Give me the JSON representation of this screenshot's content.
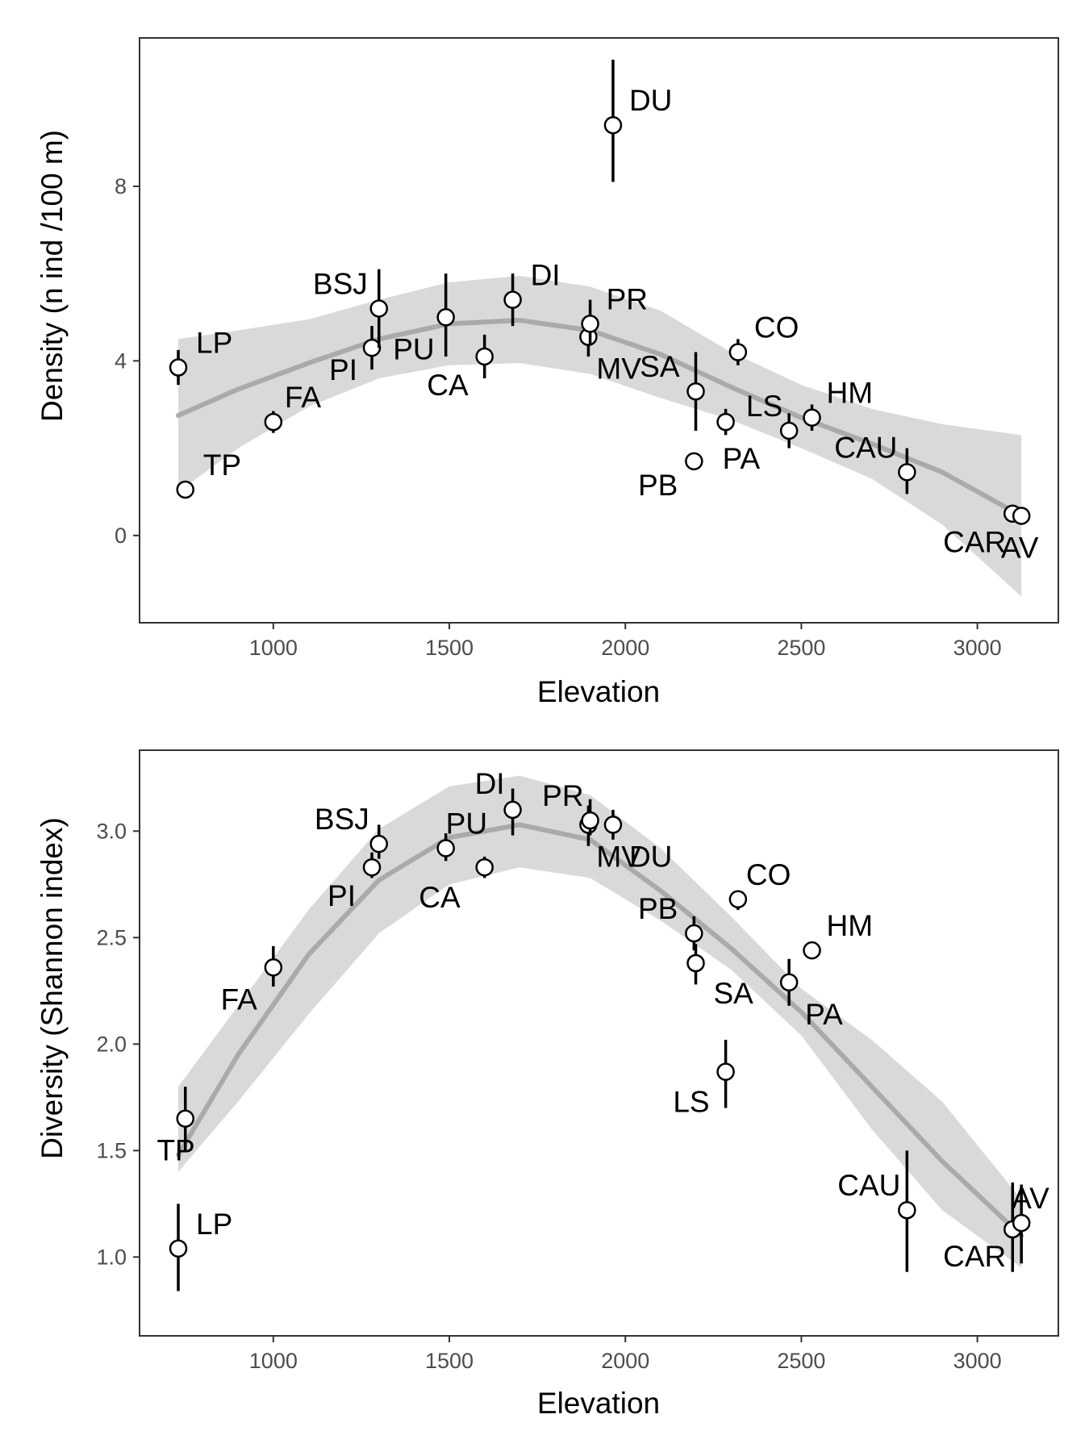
{
  "chart_data": [
    {
      "type": "scatter",
      "title": "",
      "xlabel": "Elevation",
      "ylabel": "Density (n ind /100 m)",
      "xlim": [
        620,
        3230
      ],
      "ylim": [
        -2,
        11.4
      ],
      "xticks": [
        1000,
        1500,
        2000,
        2500,
        3000
      ],
      "yticks": [
        0,
        4,
        8
      ],
      "ytick_labels": [
        "0",
        "4",
        "8"
      ],
      "grid": false,
      "legend": "none",
      "smooth_color": "#aaaaaa",
      "band_color": "#d9d9d9",
      "points": [
        {
          "label": "LP",
          "x": 730,
          "y": 3.85,
          "lo": 3.45,
          "hi": 4.25
        },
        {
          "label": "TP",
          "x": 750,
          "y": 1.05,
          "lo": 0.9,
          "hi": 1.2
        },
        {
          "label": "FA",
          "x": 1000,
          "y": 2.6,
          "lo": 2.35,
          "hi": 2.85
        },
        {
          "label": "PI",
          "x": 1280,
          "y": 4.3,
          "lo": 3.8,
          "hi": 4.8
        },
        {
          "label": "BSJ",
          "x": 1300,
          "y": 5.2,
          "lo": 4.3,
          "hi": 6.1
        },
        {
          "label": "PU",
          "x": 1490,
          "y": 5.0,
          "lo": 4.1,
          "hi": 6.0
        },
        {
          "label": "CA",
          "x": 1600,
          "y": 4.1,
          "lo": 3.6,
          "hi": 4.6
        },
        {
          "label": "DI",
          "x": 1680,
          "y": 5.4,
          "lo": 4.8,
          "hi": 6.0
        },
        {
          "label": "MV",
          "x": 1895,
          "y": 4.55,
          "lo": 4.1,
          "hi": 5.0
        },
        {
          "label": "PR",
          "x": 1900,
          "y": 4.85,
          "lo": 4.35,
          "hi": 5.4
        },
        {
          "label": "DU",
          "x": 1965,
          "y": 9.4,
          "lo": 8.1,
          "hi": 10.9
        },
        {
          "label": "PB",
          "x": 2195,
          "y": 1.7,
          "lo": 1.7,
          "hi": 1.7
        },
        {
          "label": "SA",
          "x": 2200,
          "y": 3.3,
          "lo": 2.4,
          "hi": 4.2
        },
        {
          "label": "PA",
          "x": 2285,
          "y": 2.6,
          "lo": 2.3,
          "hi": 2.9
        },
        {
          "label": "CO",
          "x": 2320,
          "y": 4.2,
          "lo": 3.9,
          "hi": 4.5
        },
        {
          "label": "LS",
          "x": 2465,
          "y": 2.4,
          "lo": 2.0,
          "hi": 2.8
        },
        {
          "label": "HM",
          "x": 2530,
          "y": 2.7,
          "lo": 2.4,
          "hi": 3.0
        },
        {
          "label": "CAU",
          "x": 2800,
          "y": 1.45,
          "lo": 0.95,
          "hi": 2.0
        },
        {
          "label": "CAR",
          "x": 3100,
          "y": 0.5,
          "lo": 0.5,
          "hi": 0.5
        },
        {
          "label": "AV",
          "x": 3125,
          "y": 0.45,
          "lo": 0.45,
          "hi": 0.45
        }
      ],
      "smooth": {
        "x": [
          730,
          900,
          1100,
          1300,
          1500,
          1700,
          1900,
          2100,
          2300,
          2500,
          2700,
          2900,
          3125
        ],
        "y": [
          2.75,
          3.35,
          3.95,
          4.5,
          4.85,
          4.93,
          4.7,
          4.15,
          3.4,
          2.7,
          2.1,
          1.45,
          0.45
        ],
        "lo": [
          1.0,
          2.0,
          2.95,
          3.6,
          3.9,
          3.95,
          3.7,
          3.15,
          2.65,
          2.0,
          1.3,
          0.25,
          -1.4
        ],
        "hi": [
          4.5,
          4.7,
          4.95,
          5.4,
          5.8,
          5.95,
          5.7,
          5.15,
          4.2,
          3.45,
          2.9,
          2.55,
          2.3
        ]
      }
    },
    {
      "type": "scatter",
      "title": "",
      "xlabel": "Elevation",
      "ylabel": "Diversity (Shannon index)",
      "xlim": [
        620,
        3230
      ],
      "ylim": [
        0.63,
        3.38
      ],
      "xticks": [
        1000,
        1500,
        2000,
        2500,
        3000
      ],
      "yticks": [
        1.0,
        1.5,
        2.0,
        2.5,
        3.0
      ],
      "ytick_labels": [
        "1.0",
        "1.5",
        "2.0",
        "2.5",
        "3.0"
      ],
      "grid": false,
      "legend": "none",
      "smooth_color": "#aaaaaa",
      "band_color": "#d9d9d9",
      "points": [
        {
          "label": "LP",
          "x": 730,
          "y": 1.04,
          "lo": 0.84,
          "hi": 1.25
        },
        {
          "label": "TP",
          "x": 750,
          "y": 1.65,
          "lo": 1.5,
          "hi": 1.8
        },
        {
          "label": "FA",
          "x": 1000,
          "y": 2.36,
          "lo": 2.27,
          "hi": 2.46
        },
        {
          "label": "PI",
          "x": 1280,
          "y": 2.83,
          "lo": 2.78,
          "hi": 2.9
        },
        {
          "label": "BSJ",
          "x": 1300,
          "y": 2.94,
          "lo": 2.87,
          "hi": 3.03
        },
        {
          "label": "PU",
          "x": 1490,
          "y": 2.92,
          "lo": 2.86,
          "hi": 2.99
        },
        {
          "label": "CA",
          "x": 1600,
          "y": 2.83,
          "lo": 2.78,
          "hi": 2.88
        },
        {
          "label": "DI",
          "x": 1680,
          "y": 3.1,
          "lo": 2.98,
          "hi": 3.2
        },
        {
          "label": "MV",
          "x": 1895,
          "y": 3.03,
          "lo": 2.93,
          "hi": 3.12
        },
        {
          "label": "PR",
          "x": 1900,
          "y": 3.05,
          "lo": 2.98,
          "hi": 3.15
        },
        {
          "label": "DU",
          "x": 1965,
          "y": 3.03,
          "lo": 2.96,
          "hi": 3.1
        },
        {
          "label": "PB",
          "x": 2195,
          "y": 2.52,
          "lo": 2.44,
          "hi": 2.6
        },
        {
          "label": "SA",
          "x": 2200,
          "y": 2.38,
          "lo": 2.28,
          "hi": 2.47
        },
        {
          "label": "LS",
          "x": 2285,
          "y": 1.87,
          "lo": 1.7,
          "hi": 2.02
        },
        {
          "label": "CO",
          "x": 2320,
          "y": 2.68,
          "lo": 2.63,
          "hi": 2.72
        },
        {
          "label": "PA",
          "x": 2465,
          "y": 2.29,
          "lo": 2.18,
          "hi": 2.4
        },
        {
          "label": "HM",
          "x": 2530,
          "y": 2.44,
          "lo": 2.4,
          "hi": 2.48
        },
        {
          "label": "CAU",
          "x": 2800,
          "y": 1.22,
          "lo": 0.93,
          "hi": 1.5
        },
        {
          "label": "CAR",
          "x": 3100,
          "y": 1.13,
          "lo": 0.93,
          "hi": 1.35
        },
        {
          "label": "AV",
          "x": 3125,
          "y": 1.16,
          "lo": 0.97,
          "hi": 1.34
        }
      ],
      "smooth": {
        "x": [
          730,
          900,
          1100,
          1300,
          1500,
          1700,
          1900,
          2100,
          2300,
          2500,
          2700,
          2900,
          3125
        ],
        "y": [
          1.48,
          1.95,
          2.42,
          2.77,
          2.97,
          3.03,
          2.96,
          2.72,
          2.45,
          2.15,
          1.8,
          1.45,
          1.1
        ],
        "lo": [
          1.4,
          1.73,
          2.14,
          2.52,
          2.75,
          2.83,
          2.78,
          2.58,
          2.35,
          2.04,
          1.6,
          1.22,
          0.95
        ],
        "hi": [
          1.8,
          2.18,
          2.63,
          3.01,
          3.21,
          3.26,
          3.17,
          2.92,
          2.6,
          2.26,
          2.02,
          1.73,
          1.27
        ]
      }
    }
  ]
}
